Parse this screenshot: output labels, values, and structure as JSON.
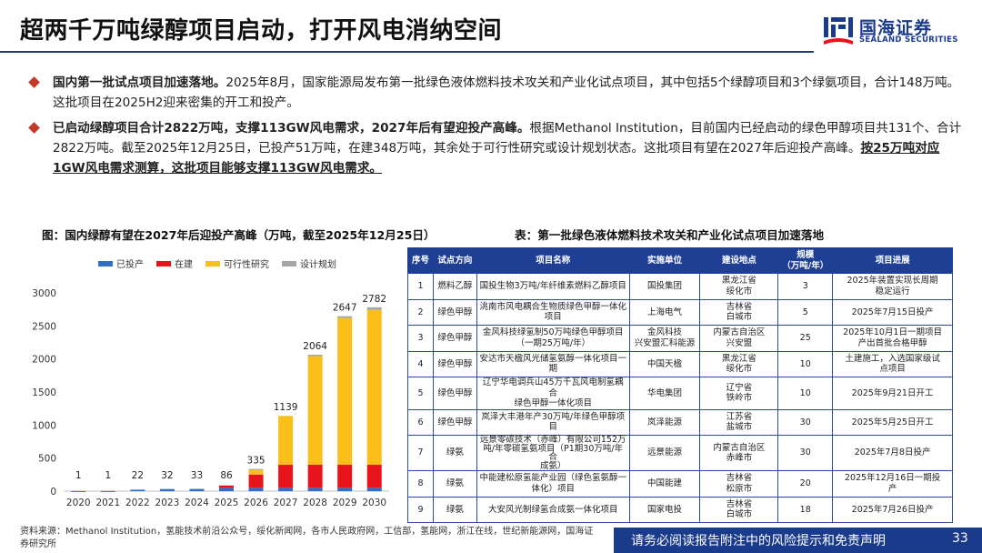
{
  "header": {
    "title": "超两千万吨绿醇项目启动，打开风电消纳空间",
    "logo_cn": "国海证券",
    "logo_en": "SEALAND SECURITIES"
  },
  "bullets": [
    {
      "bold": "国内第一批试点项目加速落地。",
      "text": "2025年8月，国家能源局发布第一批绿色液体燃料技术攻关和产业化试点项目，其中包括5个绿醇项目和3个绿氨项目，合计148万吨。这批项目在2025H2迎来密集的开工和投产。"
    },
    {
      "bold": "已启动绿醇项目合计2822万吨，支撑113GW风电需求，2027年后有望迎投产高峰。",
      "text": "根据Methanol Institution，目前国内已经启动的绿色甲醇项目共131个、合计2822万吨。截至2025年12月25日，已投产51万吨，在建348万吨，其余处于可行性研究或设计规划状态。这批项目有望在2027年后迎投产高峰。",
      "underline": "按25万吨对应1GW风电需求测算，这批项目能够支撑113GW风电需求。"
    }
  ],
  "figure_left_caption": "图：国内绿醇有望在2027年后迎投产高峰（万吨，截至2025年12月25日）",
  "figure_right_caption": "表：第一批绿色液体燃料技术攻关和产业化试点项目加速落地",
  "colors": {
    "operating": "#2e6fc4",
    "construction": "#e8141b",
    "feasibility": "#fbbf1a",
    "planning": "#a6a6a6",
    "brand": "#1a3a8a"
  },
  "chart_data": {
    "type": "bar",
    "stacked": true,
    "categories": [
      "2020",
      "2021",
      "2022",
      "2023",
      "2024",
      "2025",
      "2026",
      "2027",
      "2028",
      "2029",
      "2030"
    ],
    "series": [
      {
        "name": "已投产",
        "values": [
          1,
          1,
          22,
          32,
          33,
          51,
          51,
          51,
          51,
          51,
          51
        ]
      },
      {
        "name": "在建",
        "values": [
          0,
          0,
          0,
          0,
          0,
          35,
          200,
          348,
          348,
          348,
          348
        ]
      },
      {
        "name": "可行性研究",
        "values": [
          0,
          0,
          0,
          0,
          0,
          0,
          75,
          740,
          1645,
          2218,
          2343
        ]
      },
      {
        "name": "设计规划",
        "values": [
          0,
          0,
          0,
          0,
          0,
          0,
          9,
          0,
          20,
          30,
          40
        ]
      }
    ],
    "totals": [
      1,
      1,
      22,
      32,
      33,
      86,
      335,
      1139,
      2064,
      2647,
      2782
    ],
    "ylim": [
      0,
      3000
    ],
    "yticks": [
      0,
      500,
      1000,
      1500,
      2000,
      2500,
      3000
    ],
    "legend_position": "top",
    "grid": false
  },
  "table": {
    "headers": [
      "序号",
      "试点方向",
      "项目名称",
      "实施单位",
      "建设地点",
      "规模\n（万吨/年）",
      "项目进展"
    ],
    "rows": [
      [
        "1",
        "燃料乙醇",
        "国投生物3万吨/年纤维素燃料乙醇项目",
        "国投集团",
        "黑龙江省\n绥化市",
        "3",
        "2025年装置实现长周期\n稳定运行"
      ],
      [
        "2",
        "绿色甲醇",
        "洮南市风电耦合生物质绿色甲醇一体化\n项目",
        "上海电气",
        "吉林省\n白城市",
        "5",
        "2025年7月15日投产"
      ],
      [
        "3",
        "绿色甲醇",
        "金风科技绿氢制50万吨绿色甲醇项目\n（一期25万吨/年）",
        "金风科技\n兴安盟汇科能源",
        "内蒙古自治区\n兴安盟",
        "25",
        "2025年10月1日一期项目\n产出首批合格甲醇"
      ],
      [
        "4",
        "绿色甲醇",
        "安达市天楹风光储氢氨醇一体化项目一\n期",
        "中国天楹",
        "黑龙江省\n绥化市",
        "10",
        "土建施工，入选国家级试\n点项目"
      ],
      [
        "5",
        "绿色甲醇",
        "辽宁华电调兵山45万千瓦风电制氢耦合\n绿色甲醇一体化项目",
        "华电集团",
        "辽宁省\n铁岭市",
        "10",
        "2025年9月21日开工"
      ],
      [
        "6",
        "绿色甲醇",
        "岚泽大丰港年产30万吨/年绿色甲醇项目",
        "岚泽能源",
        "江苏省\n盐城市",
        "30",
        "2025年5月25日开工"
      ],
      [
        "7",
        "绿氨",
        "远景零碳技术（赤峰）有限公司152万\n吨/年零碳氢氨项目（P1期30万吨/年合\n成氨）",
        "远景能源",
        "内蒙古自治区\n赤峰市",
        "30",
        "2025年7月8日投产"
      ],
      [
        "8",
        "绿氨",
        "中能建松原氢能产业园（绿色氢氨醇一\n体化）项目",
        "中国能建",
        "吉林省\n松原市",
        "20",
        "2025年12月16日一期投\n产"
      ],
      [
        "9",
        "绿氨",
        "大安风光制绿氢合成氨一体化项目",
        "国家电投",
        "吉林省\n白城市",
        "18",
        "2025年7月26日投产"
      ]
    ]
  },
  "footer": {
    "source": "资料来源：Methanol Institution，氢能技术前沿公众号，绥化新闻网，各市人民政府网，工信部，氢能网，浙江在线，世纪新能源网，国海证券研究所",
    "disclaimer": "请务必阅读报告附注中的风险提示和免责声明",
    "page": "33"
  }
}
